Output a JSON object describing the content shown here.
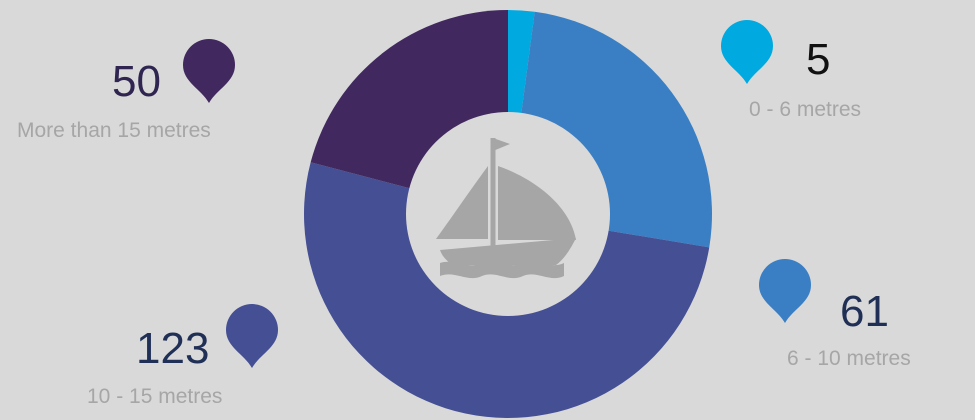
{
  "chart_data": {
    "type": "pie",
    "donut": true,
    "categories": [
      "0 - 6 metres",
      "6 - 10  metres",
      "10 - 15  metres",
      "More than 15 metres"
    ],
    "values": [
      5,
      61,
      123,
      50
    ],
    "colors": [
      "#00a9e0",
      "#3a7fc4",
      "#454f94",
      "#41285e"
    ],
    "count_text_colors": [
      "#111111",
      "#1f2f55",
      "#1f2f55",
      "#2f2550"
    ],
    "center_icon": "sailboat-icon",
    "legend": "callouts with location-pin markers around the ring"
  },
  "colors": {
    "background": "#d9d9d9",
    "hole": "#d9d9d9",
    "boat": "#a6a6a6",
    "range_text": "#a6a6a6"
  },
  "labels": [
    {
      "count": "5",
      "range": "0 - 6 metres"
    },
    {
      "count": "61",
      "range": "6 - 10  metres"
    },
    {
      "count": "123",
      "range": "10 - 15  metres"
    },
    {
      "count": "50",
      "range": "More than 15 metres"
    }
  ]
}
